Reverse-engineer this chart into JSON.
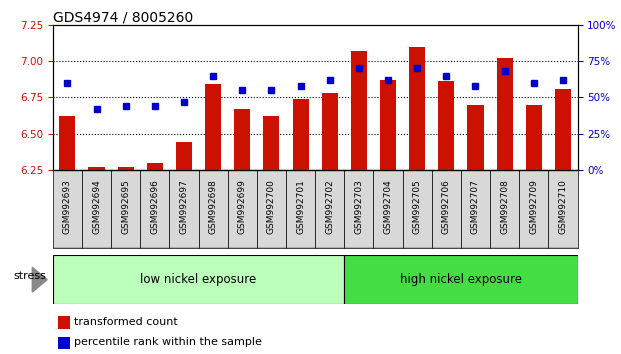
{
  "title": "GDS4974 / 8005260",
  "samples": [
    "GSM992693",
    "GSM992694",
    "GSM992695",
    "GSM992696",
    "GSM992697",
    "GSM992698",
    "GSM992699",
    "GSM992700",
    "GSM992701",
    "GSM992702",
    "GSM992703",
    "GSM992704",
    "GSM992705",
    "GSM992706",
    "GSM992707",
    "GSM992708",
    "GSM992709",
    "GSM992710"
  ],
  "bar_values": [
    6.62,
    6.27,
    6.27,
    6.3,
    6.44,
    6.84,
    6.67,
    6.62,
    6.74,
    6.78,
    7.07,
    6.87,
    7.1,
    6.86,
    6.7,
    7.02,
    6.7,
    6.81
  ],
  "dot_values": [
    60,
    42,
    44,
    44,
    47,
    65,
    55,
    55,
    58,
    62,
    70,
    62,
    70,
    65,
    58,
    68,
    60,
    62
  ],
  "bar_color": "#cc1100",
  "dot_color": "#0000cc",
  "ylim_left": [
    6.25,
    7.25
  ],
  "ylim_right": [
    0,
    100
  ],
  "yticks_left": [
    6.25,
    6.5,
    6.75,
    7.0,
    7.25
  ],
  "yticks_right": [
    0,
    25,
    50,
    75,
    100
  ],
  "ytick_labels_right": [
    "0%",
    "25%",
    "50%",
    "75%",
    "100%"
  ],
  "hlines": [
    6.5,
    6.75,
    7.0
  ],
  "group1_label": "low nickel exposure",
  "group2_label": "high nickel exposure",
  "group1_count": 10,
  "group1_color": "#bbffbb",
  "group2_color": "#44dd44",
  "stress_label": "stress",
  "legend_bar": "transformed count",
  "legend_dot": "percentile rank within the sample",
  "bar_bottom": 6.25,
  "background_color": "#ffffff",
  "plot_bg": "#ffffff",
  "tick_label_color_left": "#cc1100",
  "tick_label_color_right": "#0000cc",
  "title_fontsize": 10,
  "tick_fontsize": 7.5,
  "group_label_fontsize": 8.5,
  "xtick_fontsize": 6.5
}
